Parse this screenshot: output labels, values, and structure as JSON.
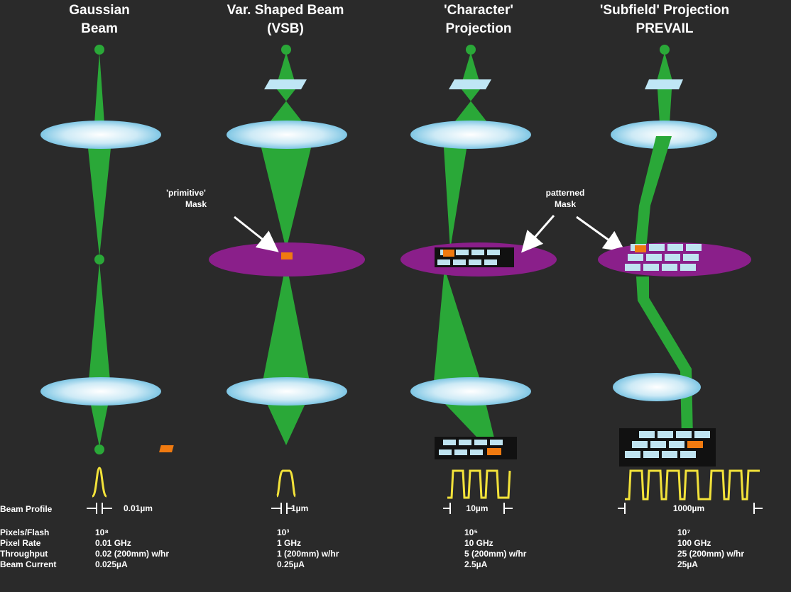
{
  "columns": [
    {
      "title": [
        "Gaussian",
        "Beam"
      ],
      "resolution": "0.01µm",
      "specs": [
        "10⁸",
        "0.01 GHz",
        "0.02 (200mm) w/hr",
        "0.025µA"
      ]
    },
    {
      "title": [
        "Var. Shaped Beam",
        "(VSB)"
      ],
      "resolution": "1µm",
      "specs": [
        "10³",
        "1 GHz",
        "1 (200mm) w/hr",
        "0.25µA"
      ]
    },
    {
      "title": [
        "'Character'",
        "Projection"
      ],
      "resolution": "10µm",
      "specs": [
        "10⁵",
        "10 GHz",
        "5 (200mm) w/hr",
        "2.5µA"
      ]
    },
    {
      "title": [
        "'Subfield' Projection",
        "PREVAIL"
      ],
      "resolution": "1000µm",
      "specs": [
        "10⁷",
        "100 GHz",
        "25 (200mm) w/hr",
        "25µA"
      ]
    }
  ],
  "annotations": {
    "primitive_mask": [
      "'primitive'",
      "Mask"
    ],
    "patterned_mask": [
      "patterned",
      "Mask"
    ]
  },
  "row_labels": [
    "Beam Profile",
    "Pixels/Flash",
    "Pixel Rate",
    "Throughput",
    "Beam Current"
  ],
  "colors": {
    "background": "#2a2a2a",
    "beam": "#2aa838",
    "lens": "#bfe6f5",
    "mask": "#8a1f8a",
    "aperture": "#f07a10",
    "profile": "#f2e23a",
    "pattern_cell": "#bfe3f0"
  }
}
